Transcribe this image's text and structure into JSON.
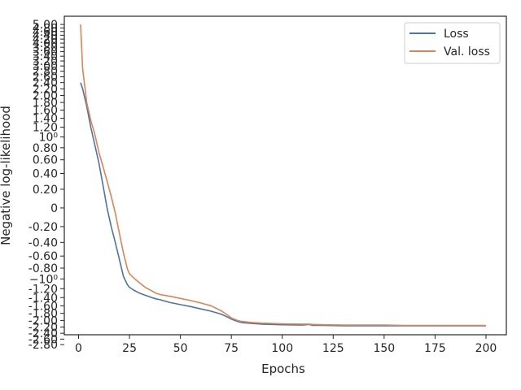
{
  "chart_data": {
    "type": "line",
    "xlabel": "Epochs",
    "ylabel": "Negative log-likelihood",
    "xlim": [
      -7,
      210
    ],
    "xticks": [
      0,
      25,
      50,
      75,
      100,
      125,
      150,
      175,
      200
    ],
    "y_axis": {
      "scale": "symlog",
      "linthresh": 1,
      "ylim": [
        -2.45,
        5.5
      ]
    },
    "yticks": [
      {
        "value": 5.0,
        "label": "5.00"
      },
      {
        "value": 4.8,
        "label": "4.80"
      },
      {
        "value": 4.6,
        "label": "4.60"
      },
      {
        "value": 4.4,
        "label": "4.40"
      },
      {
        "value": 4.2,
        "label": "4.20"
      },
      {
        "value": 4.0,
        "label": "4.00"
      },
      {
        "value": 3.8,
        "label": "3.80"
      },
      {
        "value": 3.6,
        "label": "3.60"
      },
      {
        "value": 3.4,
        "label": "3.40"
      },
      {
        "value": 3.2,
        "label": "3.20"
      },
      {
        "value": 3.0,
        "label": "3.00"
      },
      {
        "value": 2.8,
        "label": "2.80"
      },
      {
        "value": 2.6,
        "label": "2.60"
      },
      {
        "value": 2.4,
        "label": "2.40"
      },
      {
        "value": 2.2,
        "label": "2.20"
      },
      {
        "value": 2.0,
        "label": "2.00"
      },
      {
        "value": 1.8,
        "label": "1.80"
      },
      {
        "value": 1.6,
        "label": "1.60"
      },
      {
        "value": 1.4,
        "label": "1.40"
      },
      {
        "value": 1.2,
        "label": "1.20"
      },
      {
        "value": 1.0,
        "label": "10⁰"
      },
      {
        "value": 0.8,
        "label": "0.80"
      },
      {
        "value": 0.6,
        "label": "0.60"
      },
      {
        "value": 0.4,
        "label": "0.40"
      },
      {
        "value": 0.2,
        "label": "0.20"
      },
      {
        "value": 0.0,
        "label": "0"
      },
      {
        "value": -0.2,
        "label": "-0.20"
      },
      {
        "value": -0.4,
        "label": "-0.40"
      },
      {
        "value": -0.6,
        "label": "-0.60"
      },
      {
        "value": -0.8,
        "label": "-0.80"
      },
      {
        "value": -1.0,
        "label": "−10⁰"
      },
      {
        "value": -1.2,
        "label": "-1.20"
      },
      {
        "value": -1.4,
        "label": "-1.40"
      },
      {
        "value": -1.6,
        "label": "-1.60"
      },
      {
        "value": -1.8,
        "label": "-1.80"
      },
      {
        "value": -2.0,
        "label": "-2.00"
      },
      {
        "value": -2.2,
        "label": "-2.20"
      },
      {
        "value": -2.4,
        "label": "-2.40"
      },
      {
        "value": -2.6,
        "label": "-2.60"
      },
      {
        "value": -2.8,
        "label": "-2.80"
      }
    ],
    "legend_position": "top-right",
    "grid": false,
    "series": [
      {
        "name": "Loss",
        "color": "#4c72b0",
        "x": [
          1,
          2,
          4,
          6,
          8,
          10,
          12,
          14,
          16,
          18,
          20,
          22,
          24,
          25,
          27,
          30,
          33,
          36,
          38,
          40,
          45,
          50,
          55,
          60,
          65,
          70,
          73,
          75,
          78,
          80,
          85,
          90,
          100,
          110,
          113,
          115,
          120,
          130,
          140,
          150,
          160,
          170,
          180,
          190,
          200
        ],
        "y": [
          2.4,
          2.2,
          1.7,
          1.2,
          0.85,
          0.55,
          0.25,
          0.0,
          -0.2,
          -0.4,
          -0.65,
          -0.95,
          -1.12,
          -1.17,
          -1.23,
          -1.3,
          -1.35,
          -1.4,
          -1.43,
          -1.45,
          -1.52,
          -1.57,
          -1.62,
          -1.68,
          -1.74,
          -1.82,
          -1.9,
          -1.96,
          -2.03,
          -2.06,
          -2.09,
          -2.11,
          -2.13,
          -2.14,
          -2.12,
          -2.15,
          -2.15,
          -2.16,
          -2.16,
          -2.16,
          -2.16,
          -2.16,
          -2.16,
          -2.16,
          -2.16
        ]
      },
      {
        "name": "Val. loss",
        "color": "#dd8452",
        "x": [
          1,
          2,
          4,
          6,
          8,
          10,
          12,
          14,
          16,
          18,
          20,
          22,
          24,
          25,
          27,
          30,
          33,
          36,
          38,
          40,
          45,
          50,
          55,
          60,
          65,
          70,
          73,
          75,
          78,
          80,
          85,
          90,
          100,
          110,
          113,
          115,
          120,
          130,
          140,
          150,
          160,
          170,
          180,
          190,
          200
        ],
        "y": [
          5.0,
          2.9,
          1.8,
          1.35,
          1.05,
          0.72,
          0.5,
          0.3,
          0.12,
          -0.05,
          -0.28,
          -0.55,
          -0.82,
          -0.9,
          -0.98,
          -1.08,
          -1.18,
          -1.25,
          -1.3,
          -1.33,
          -1.37,
          -1.42,
          -1.47,
          -1.53,
          -1.6,
          -1.73,
          -1.84,
          -1.93,
          -2.0,
          -2.03,
          -2.06,
          -2.08,
          -2.1,
          -2.11,
          -2.11,
          -2.12,
          -2.13,
          -2.14,
          -2.14,
          -2.14,
          -2.15,
          -2.15,
          -2.15,
          -2.15,
          -2.15
        ]
      }
    ]
  }
}
